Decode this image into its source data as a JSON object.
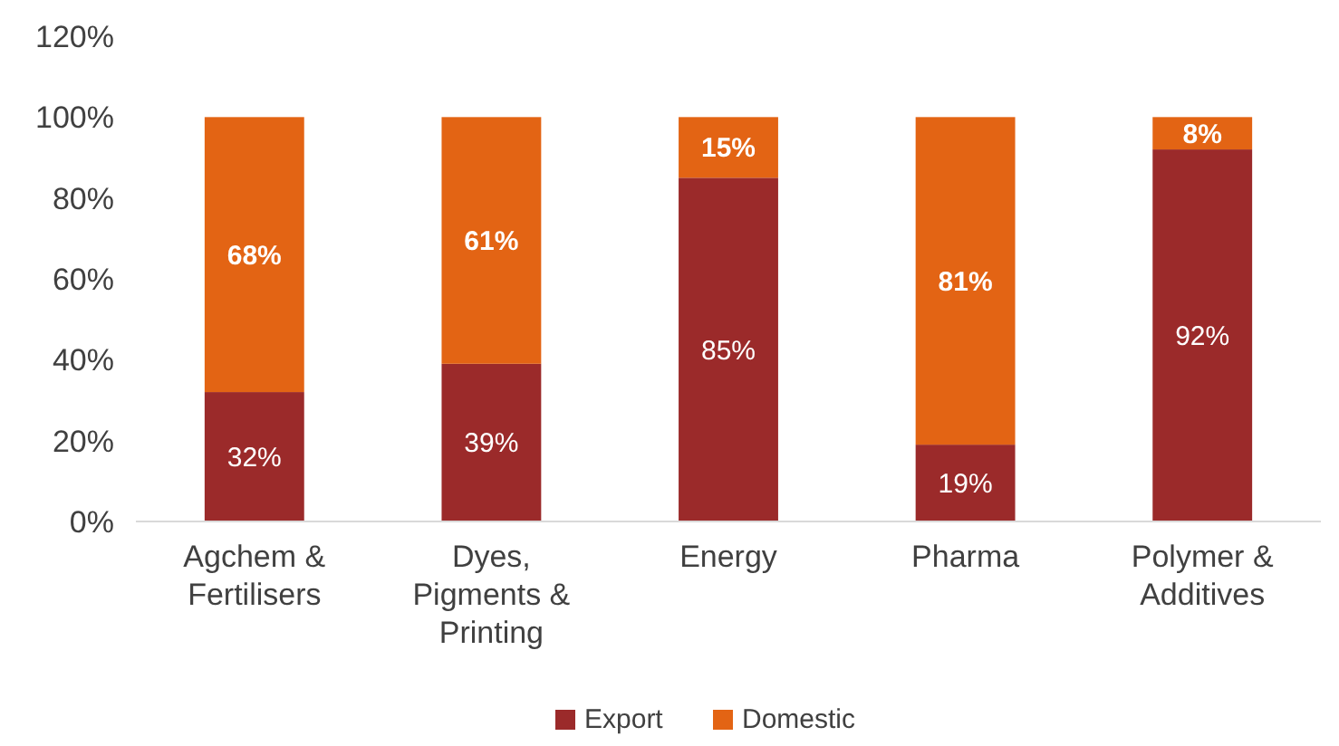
{
  "chart_data": {
    "type": "bar",
    "stacked": true,
    "categories": [
      "Agchem & Fertilisers",
      "Dyes, Pigments & Printing",
      "Energy",
      "Pharma",
      "Polymer & Additives"
    ],
    "series": [
      {
        "name": "Export",
        "color": "#9b2a2a",
        "values": [
          32,
          39,
          85,
          19,
          92
        ],
        "value_labels": [
          "32%",
          "39%",
          "85%",
          "19%",
          "92%"
        ]
      },
      {
        "name": "Domestic",
        "color": "#e36414",
        "values": [
          68,
          61,
          15,
          81,
          8
        ],
        "value_labels": [
          "68%",
          "61%",
          "15%",
          "81%",
          "8%"
        ]
      }
    ],
    "ylim": [
      0,
      120
    ],
    "yticks": [
      {
        "value": 0,
        "label": "0%"
      },
      {
        "value": 20,
        "label": "20%"
      },
      {
        "value": 40,
        "label": "40%"
      },
      {
        "value": 60,
        "label": "60%"
      },
      {
        "value": 80,
        "label": "80%"
      },
      {
        "value": 100,
        "label": "100%"
      },
      {
        "value": 120,
        "label": "120%"
      }
    ],
    "grid": false,
    "legend": "bottom"
  }
}
